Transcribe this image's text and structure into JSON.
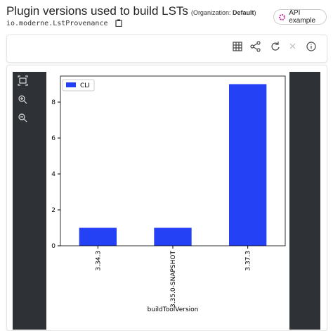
{
  "header": {
    "title": "Plugin versions used to build LSTs",
    "organization_label": "Organization:",
    "organization": "Default",
    "subtitle": "io.moderne.LstProvenance",
    "api_button": "API example"
  },
  "chart_data": {
    "type": "bar",
    "categories": [
      "3.34.3",
      "3.35.0-SNAPSHOT",
      "3.37.3"
    ],
    "series": [
      {
        "name": "CLI",
        "color": "#2541f5",
        "values": [
          1,
          1,
          9
        ]
      }
    ],
    "xlabel": "buildToolVersion",
    "ylim": [
      0,
      9.45
    ],
    "yticks": [
      0,
      2,
      4,
      6,
      8
    ],
    "legend": "upper left"
  }
}
